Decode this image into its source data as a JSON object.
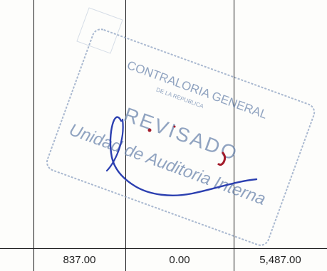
{
  "table": {
    "row": {
      "col1": "837.00",
      "col2": "0.00",
      "col3": "5,487.00"
    }
  },
  "stamp": {
    "org": "CONTRALORIA GENERAL",
    "sub": "DE LA REPUBLICA",
    "status": "REVISADO",
    "dept": "Unidad de Auditoria Interna",
    "color": "#6c86ad"
  },
  "signature": {
    "ink_color": "#2b3fb0"
  }
}
